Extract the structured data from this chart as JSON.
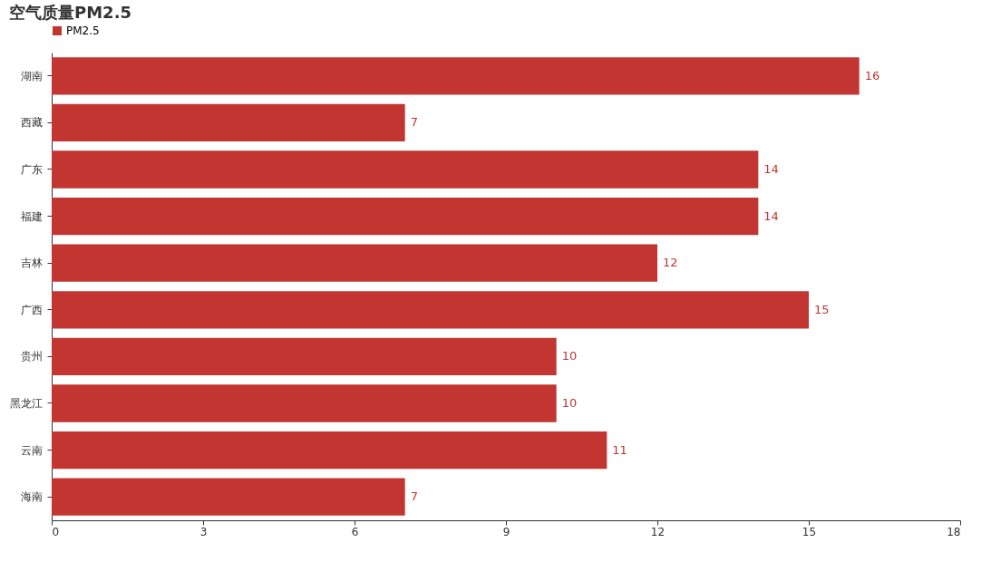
{
  "chart_data": {
    "type": "bar",
    "title": "空气质量PM2.5",
    "orientation": "horizontal",
    "categories": [
      "湖南",
      "西藏",
      "广东",
      "福建",
      "吉林",
      "广西",
      "贵州",
      "黑龙江",
      "云南",
      "海南"
    ],
    "series": [
      {
        "name": "PM2.5",
        "color": "#c23531",
        "values": [
          16,
          7,
          14,
          14,
          12,
          15,
          10,
          10,
          11,
          7
        ]
      }
    ],
    "xlim": [
      0,
      18
    ],
    "xticks": [
      0,
      3,
      6,
      9,
      12,
      15,
      18
    ],
    "grid": false,
    "legend": "top",
    "data_labels": true
  }
}
